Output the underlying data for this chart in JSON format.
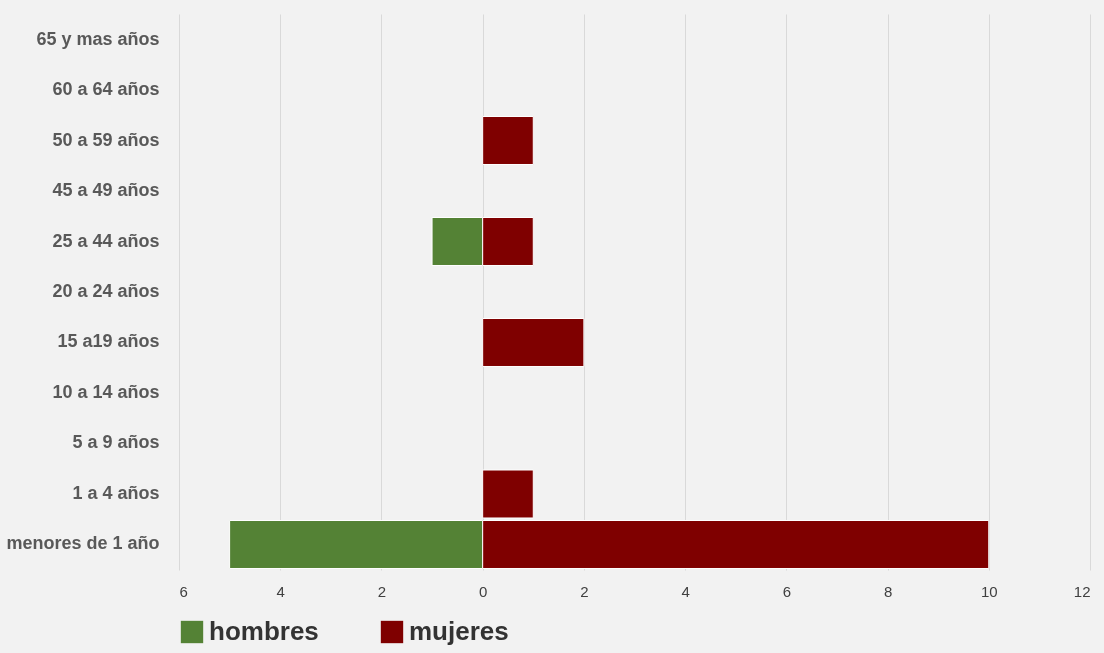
{
  "chart_data": {
    "type": "bar",
    "orientation": "horizontal",
    "categories": [
      "65 y mas años",
      "60 a 64 años",
      "50 a 59 años",
      "45 a 49 años",
      "25 a 44 años",
      "20 a 24 años",
      "15 a19 años",
      "10 a 14 años",
      "5 a 9 años",
      "1 a 4 años",
      "menores de 1 año"
    ],
    "series": [
      {
        "name": "hombres",
        "color": "#548235",
        "values": [
          null,
          null,
          null,
          null,
          -1,
          null,
          null,
          null,
          null,
          null,
          -5
        ]
      },
      {
        "name": "mujeres",
        "color": "#7f0000",
        "values": [
          null,
          null,
          1,
          null,
          1,
          null,
          2,
          null,
          null,
          1,
          10
        ]
      }
    ],
    "xlim": [
      -6,
      12
    ],
    "xticks": [
      {
        "value": -6,
        "label": "6"
      },
      {
        "value": -4,
        "label": "4"
      },
      {
        "value": -2,
        "label": "2"
      },
      0,
      2,
      4,
      6,
      8,
      10,
      12
    ],
    "grid": "x",
    "legend": "bottom"
  }
}
